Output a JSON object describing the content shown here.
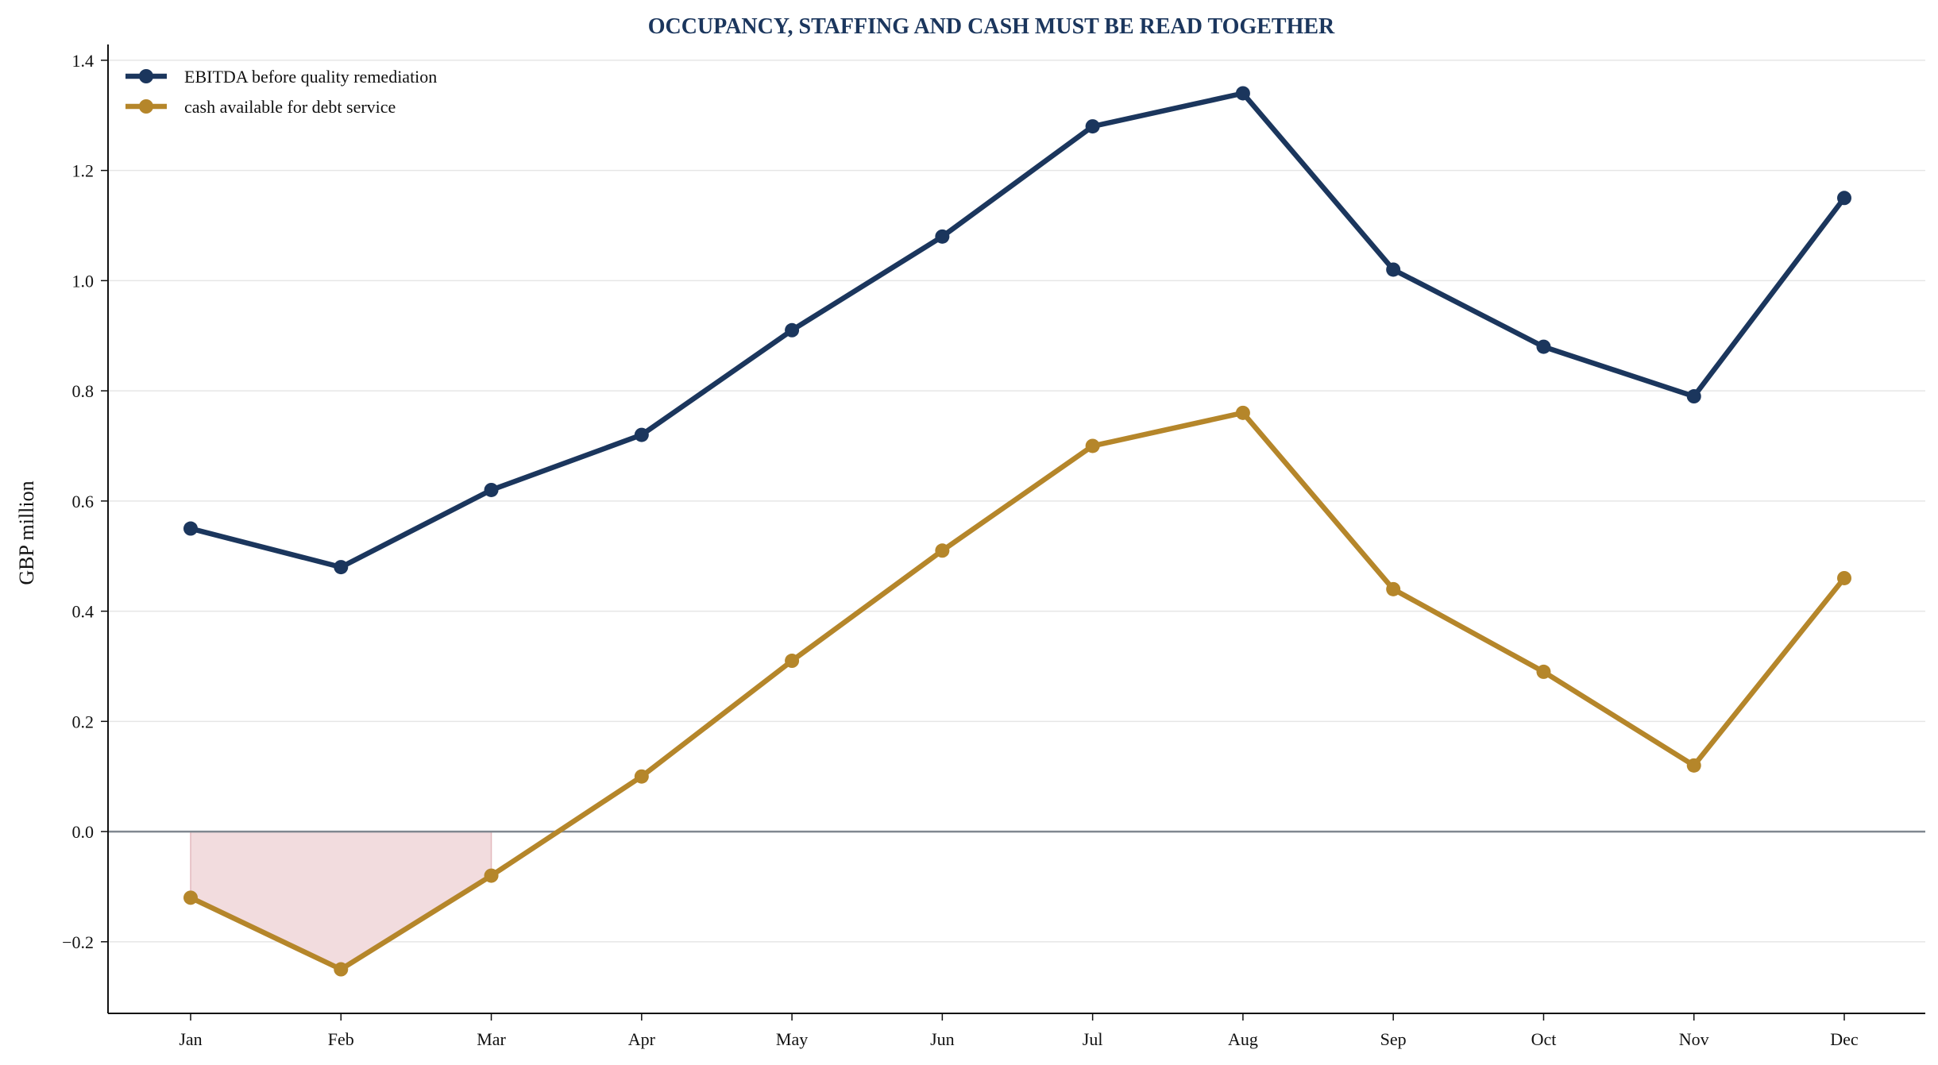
{
  "chart_data": {
    "type": "line",
    "title": "OCCUPANCY, STAFFING AND CASH MUST BE READ TOGETHER",
    "xlabel": "",
    "ylabel": "GBP million",
    "categories": [
      "Jan",
      "Feb",
      "Mar",
      "Apr",
      "May",
      "Jun",
      "Jul",
      "Aug",
      "Sep",
      "Oct",
      "Nov",
      "Dec"
    ],
    "ylim": [
      -0.33,
      1.42
    ],
    "yticks": [
      -0.2,
      0.0,
      0.2,
      0.4,
      0.6,
      0.8,
      1.0,
      1.2,
      1.4
    ],
    "ytick_labels": [
      "−0.2",
      "0.0",
      "0.2",
      "0.4",
      "0.6",
      "0.8",
      "1.0",
      "1.2",
      "1.4"
    ],
    "grid": "horizontal",
    "legend_position": "top-left",
    "series": [
      {
        "name": "EBITDA before quality remediation",
        "color": "#1b365d",
        "values": [
          0.55,
          0.48,
          0.62,
          0.72,
          0.91,
          1.08,
          1.28,
          1.34,
          1.02,
          0.88,
          0.79,
          1.15
        ]
      },
      {
        "name": "cash available for debt service",
        "color": "#b5862a",
        "values": [
          -0.12,
          -0.25,
          -0.08,
          0.1,
          0.31,
          0.51,
          0.7,
          0.76,
          0.44,
          0.29,
          0.12,
          0.46
        ]
      }
    ],
    "negative_fill_color": "#f2dcde",
    "title_color": "#1b365d",
    "zero_line_color": "#808890"
  }
}
